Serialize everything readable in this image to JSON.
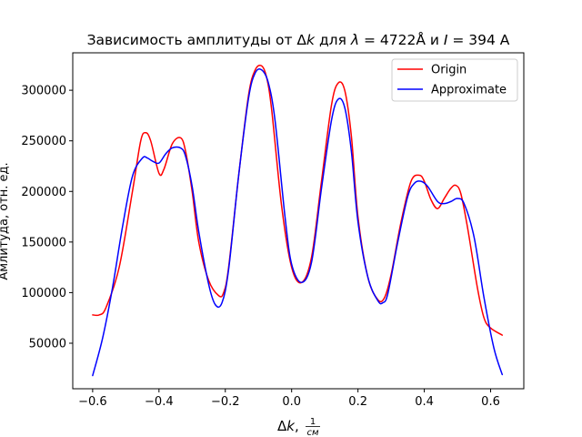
{
  "chart_data": {
    "type": "line",
    "title_parts": [
      "Зависимость амплитуды от Δ",
      "k",
      " для ",
      "λ",
      " = 4722",
      "Å",
      " и ",
      "I",
      " = 394 А"
    ],
    "xlabel_parts": [
      "Δ",
      "k",
      ", "
    ],
    "xlabel_fraction": {
      "num": "1",
      "den": "см"
    },
    "ylabel": "Амлитуда, отн. ед.",
    "xlim": [
      -0.66,
      0.7
    ],
    "ylim": [
      5000,
      337000
    ],
    "xticks": [
      -0.6,
      -0.4,
      -0.2,
      0.0,
      0.2,
      0.4,
      0.6
    ],
    "xtick_labels": [
      "−0.6",
      "−0.4",
      "−0.2",
      "0.0",
      "0.2",
      "0.4",
      "0.6"
    ],
    "yticks": [
      50000,
      100000,
      150000,
      200000,
      250000,
      300000
    ],
    "ytick_labels": [
      "50000",
      "100000",
      "150000",
      "200000",
      "250000",
      "300000"
    ],
    "grid": false,
    "legend_position": "top-right",
    "series": [
      {
        "name": "Origin",
        "color": "#ff0000",
        "x": [
          -0.6,
          -0.58,
          -0.56,
          -0.52,
          -0.48,
          -0.455,
          -0.44,
          -0.425,
          -0.4,
          -0.385,
          -0.36,
          -0.335,
          -0.32,
          -0.3,
          -0.28,
          -0.25,
          -0.22,
          -0.205,
          -0.19,
          -0.16,
          -0.13,
          -0.11,
          -0.09,
          -0.075,
          -0.06,
          -0.03,
          0.0,
          0.03,
          0.06,
          0.09,
          0.12,
          0.14,
          0.16,
          0.18,
          0.2,
          0.23,
          0.26,
          0.28,
          0.3,
          0.33,
          0.36,
          0.385,
          0.4,
          0.42,
          0.44,
          0.46,
          0.48,
          0.495,
          0.51,
          0.53,
          0.56,
          0.58,
          0.6,
          0.635
        ],
        "y": [
          78000,
          78000,
          85000,
          125000,
          200000,
          250000,
          258000,
          250000,
          218000,
          222000,
          247000,
          253000,
          240000,
          200000,
          150000,
          112000,
          97000,
          100000,
          125000,
          215000,
          295000,
          320000,
          324000,
          312000,
          280000,
          185000,
          125000,
          110000,
          135000,
          210000,
          285000,
          307000,
          300000,
          255000,
          175000,
          115000,
          93000,
          95000,
          118000,
          170000,
          210000,
          216000,
          210000,
          192000,
          183000,
          193000,
          203000,
          206000,
          198000,
          165000,
          105000,
          75000,
          65000,
          58000
        ]
      },
      {
        "name": "Approximate",
        "color": "#0000ff",
        "x": [
          -0.6,
          -0.57,
          -0.54,
          -0.51,
          -0.48,
          -0.45,
          -0.435,
          -0.42,
          -0.4,
          -0.38,
          -0.36,
          -0.335,
          -0.32,
          -0.3,
          -0.28,
          -0.25,
          -0.23,
          -0.21,
          -0.19,
          -0.16,
          -0.13,
          -0.11,
          -0.09,
          -0.07,
          -0.05,
          -0.02,
          0.0,
          0.03,
          0.06,
          0.09,
          0.12,
          0.14,
          0.16,
          0.18,
          0.2,
          0.23,
          0.26,
          0.275,
          0.29,
          0.32,
          0.35,
          0.37,
          0.39,
          0.41,
          0.44,
          0.46,
          0.48,
          0.5,
          0.52,
          0.55,
          0.58,
          0.61,
          0.635
        ],
        "y": [
          18000,
          55000,
          105000,
          165000,
          215000,
          233000,
          233000,
          230000,
          228000,
          237000,
          243000,
          243000,
          235000,
          205000,
          160000,
          108000,
          88000,
          90000,
          123000,
          215000,
          292000,
          317000,
          320000,
          307000,
          270000,
          175000,
          128000,
          110000,
          130000,
          203000,
          270000,
          291000,
          283000,
          240000,
          170000,
          115000,
          92000,
          90000,
          99000,
          150000,
          195000,
          208000,
          210000,
          205000,
          190000,
          188000,
          190000,
          193000,
          188000,
          155000,
          95000,
          45000,
          19000
        ]
      }
    ]
  }
}
